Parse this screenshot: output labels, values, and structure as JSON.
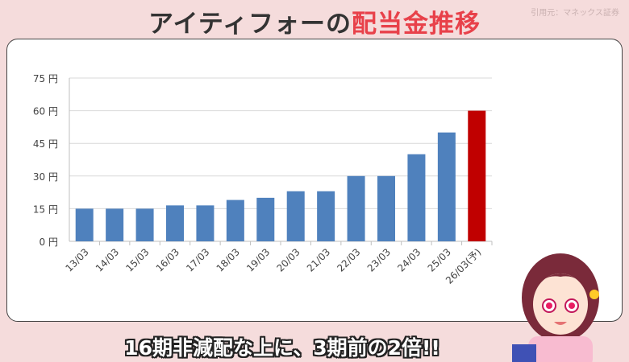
{
  "title": {
    "main": "アイティフォーの",
    "highlight": "配当金推移"
  },
  "source": "引用元：マネックス証券",
  "caption": "16期非減配な上に、3期前の2倍!!",
  "colors": {
    "bar": "#4f81bd",
    "forecast": "#c00000",
    "grid": "#d9d9d9"
  },
  "chart_data": {
    "type": "bar",
    "categories": [
      "13/03",
      "14/03",
      "15/03",
      "16/03",
      "17/03",
      "18/03",
      "19/03",
      "20/03",
      "21/03",
      "22/03",
      "23/03",
      "24/03",
      "25/03",
      "26/03(予)"
    ],
    "values": [
      15,
      15,
      15,
      16.5,
      16.5,
      19,
      20,
      23,
      23,
      30,
      30,
      40,
      50,
      60
    ],
    "forecast_index": 13,
    "yticks": [
      "0 円",
      "15 円",
      "30 円",
      "45 円",
      "60 円",
      "75 円"
    ],
    "ytick_values": [
      0,
      15,
      30,
      45,
      60,
      75
    ],
    "ylim": [
      0,
      75
    ],
    "grid": true,
    "xlabel": "",
    "ylabel": ""
  }
}
